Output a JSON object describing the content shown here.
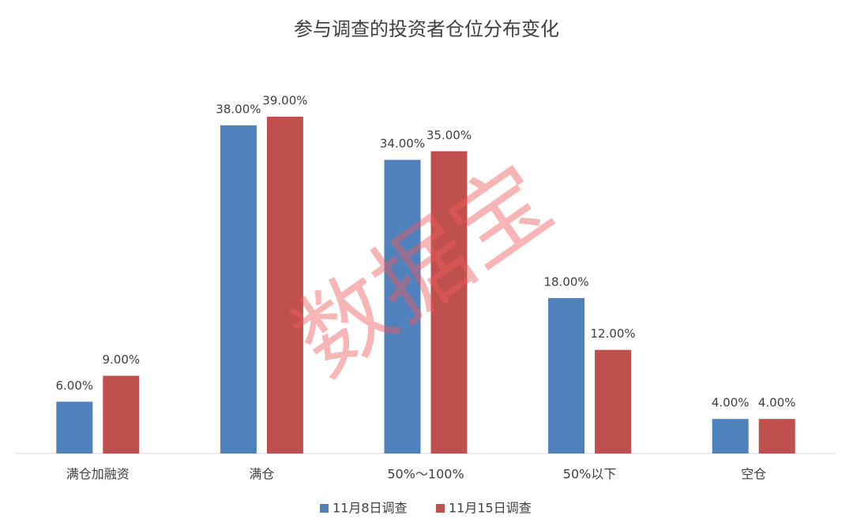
{
  "chart_data": {
    "type": "bar",
    "title": "参与调查的投资者仓位分布变化",
    "categories": [
      "满仓加融资",
      "满仓",
      "50%～100%",
      "50%以下",
      "空仓"
    ],
    "series": [
      {
        "name": "11月8日调查",
        "color": "#4f81bd",
        "values": [
          6,
          38,
          34,
          18,
          4
        ],
        "value_labels": [
          "6.00%",
          "38.00%",
          "34.00%",
          "18.00%",
          "4.00%"
        ]
      },
      {
        "name": "11月15日调查",
        "color": "#c0504d",
        "values": [
          9,
          39,
          35,
          12,
          4
        ],
        "value_labels": [
          "9.00%",
          "39.00%",
          "35.00%",
          "12.00%",
          "4.00%"
        ]
      }
    ],
    "ylim": [
      0,
      40
    ],
    "legend": "bottom",
    "watermark": "数据宝"
  }
}
